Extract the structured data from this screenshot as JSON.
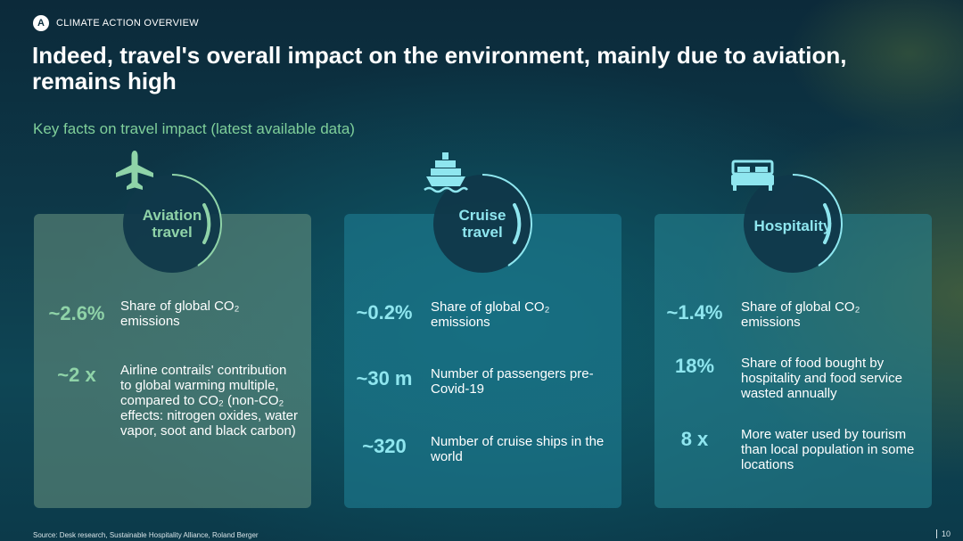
{
  "header": {
    "badge": "A",
    "section": "CLIMATE ACTION OVERVIEW"
  },
  "title": "Indeed, travel's overall impact on the environment, mainly due to aviation, remains high",
  "subtitle": "Key facts on travel impact (latest available data)",
  "colors": {
    "green_accent": "#8fd3a8",
    "cyan_accent": "#8fe6ef"
  },
  "cards": [
    {
      "name": "Aviation\ntravel",
      "icon": "airplane-icon",
      "facts": [
        {
          "value": "~2.6%",
          "description": "Share of global CO₂ emissions"
        },
        {
          "value": "~2 x",
          "description": "Airline contrails' contribution to global warming multiple, compared to CO₂ (non-CO₂ effects: nitrogen oxides, water vapor, soot and black carbon)"
        }
      ]
    },
    {
      "name": "Cruise\ntravel",
      "icon": "cruise-ship-icon",
      "facts": [
        {
          "value": "~0.2%",
          "description": "Share of global CO₂ emissions"
        },
        {
          "value": "~30 m",
          "description": "Number of passengers pre-Covid-19"
        },
        {
          "value": "~320",
          "description": "Number of cruise ships in the world"
        }
      ]
    },
    {
      "name": "Hospitality",
      "icon": "bed-icon",
      "facts": [
        {
          "value": "~1.4%",
          "description": "Share of global CO₂ emissions"
        },
        {
          "value": "18%",
          "description": "Share of food bought by hospitality and food service wasted annually"
        },
        {
          "value": "8 x",
          "description": "More water used by tourism than local population in some locations"
        }
      ]
    }
  ],
  "footer": {
    "source": "Source: Desk research, Sustainable Hospitality Alliance, Roland Berger",
    "page": "10"
  }
}
